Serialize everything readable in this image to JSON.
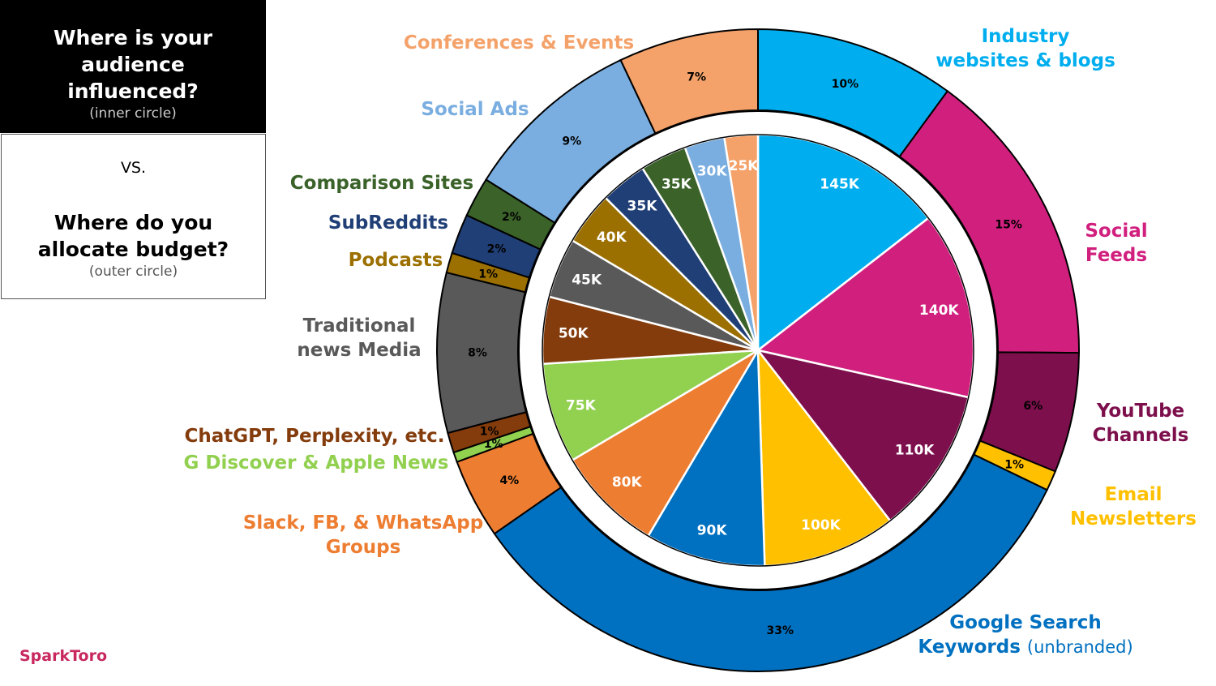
{
  "header": {
    "question_inner": "Where is your audience influenced?",
    "inner_note": "(inner circle)",
    "vs": "VS.",
    "question_outer": "Where do you allocate budget?",
    "outer_note": "(outer circle)"
  },
  "brand": "SparkToro",
  "chart_data": {
    "type": "pie",
    "variant": "nested donut",
    "inner": {
      "unit": "K",
      "slices": [
        {
          "category": "Industry websites & blogs",
          "value": 145,
          "label": "145K",
          "color": "#00aeef"
        },
        {
          "category": "Social Feeds",
          "value": 140,
          "label": "140K",
          "color": "#d11f7e"
        },
        {
          "category": "YouTube Channels",
          "value": 110,
          "label": "110K",
          "color": "#7d0f4d"
        },
        {
          "category": "Email Newsletters",
          "value": 100,
          "label": "100K",
          "color": "#ffc000"
        },
        {
          "category": "Google Search Keywords (unbranded)",
          "value": 90,
          "label": "90K",
          "color": "#0070c0"
        },
        {
          "category": "Slack, FB, & WhatsApp Groups",
          "value": 80,
          "label": "80K",
          "color": "#ed7d31"
        },
        {
          "category": "G Discover & Apple News",
          "value": 75,
          "label": "75K",
          "color": "#92d050"
        },
        {
          "category": "ChatGPT, Perplexity, etc.",
          "value": 50,
          "label": "50K",
          "color": "#843c0c"
        },
        {
          "category": "Traditional news Media",
          "value": 45,
          "label": "45K",
          "color": "#595959"
        },
        {
          "category": "Podcasts",
          "value": 40,
          "label": "40K",
          "color": "#9c7000"
        },
        {
          "category": "SubReddits",
          "value": 35,
          "label": "35K",
          "color": "#203f76"
        },
        {
          "category": "Comparison Sites",
          "value": 35,
          "label": "35K",
          "color": "#3a6229"
        },
        {
          "category": "Social Ads",
          "value": 30,
          "label": "30K",
          "color": "#7aaee0"
        },
        {
          "category": "Conferences & Events",
          "value": 25,
          "label": "25K",
          "color": "#f4a26a"
        }
      ]
    },
    "outer": {
      "unit": "%",
      "slices": [
        {
          "category": "Industry websites & blogs",
          "value": 10,
          "label": "10%",
          "color": "#00aeef"
        },
        {
          "category": "Social Feeds",
          "value": 15,
          "label": "15%",
          "color": "#d11f7e"
        },
        {
          "category": "YouTube Channels",
          "value": 6,
          "label": "6%",
          "color": "#7d0f4d"
        },
        {
          "category": "Email Newsletters",
          "value": 1,
          "label": "1%",
          "color": "#ffc000"
        },
        {
          "category": "Google Search Keywords (unbranded)",
          "value": 33,
          "label": "33%",
          "color": "#0070c0"
        },
        {
          "category": "Slack, FB, & WhatsApp Groups",
          "value": 4,
          "label": "4%",
          "color": "#ed7d31"
        },
        {
          "category": "G Discover & Apple News",
          "value": 0.5,
          "label": "1%",
          "color": "#92d050"
        },
        {
          "category": "ChatGPT, Perplexity, etc.",
          "value": 1,
          "label": "1%",
          "color": "#843c0c"
        },
        {
          "category": "Traditional news Media",
          "value": 8,
          "label": "8%",
          "color": "#595959"
        },
        {
          "category": "Podcasts",
          "value": 1,
          "label": "1%",
          "color": "#9c7000"
        },
        {
          "category": "SubReddits",
          "value": 2,
          "label": "2%",
          "color": "#203f76"
        },
        {
          "category": "Comparison Sites",
          "value": 2,
          "label": "2%",
          "color": "#3a6229"
        },
        {
          "category": "Social Ads",
          "value": 9,
          "label": "9%",
          "color": "#7aaee0"
        },
        {
          "category": "Conferences & Events",
          "value": 7,
          "label": "7%",
          "color": "#f4a26a"
        }
      ]
    },
    "category_labels": [
      {
        "lines": [
          "Industry",
          "websites & blogs"
        ],
        "color": "#00aeef"
      },
      {
        "lines": [
          "Social",
          "Feeds"
        ],
        "color": "#d11f7e"
      },
      {
        "lines": [
          "YouTube",
          "Channels"
        ],
        "color": "#7d0f4d"
      },
      {
        "lines": [
          "Email",
          "Newsletters"
        ],
        "color": "#ffc000"
      },
      {
        "lines": [
          "Google Search",
          "Keywords"
        ],
        "suffix": "(unbranded)",
        "color": "#0070c0"
      },
      {
        "lines": [
          "Slack, FB, & WhatsApp",
          "Groups"
        ],
        "color": "#ed7d31"
      },
      {
        "lines": [
          "G Discover & Apple News"
        ],
        "color": "#92d050"
      },
      {
        "lines": [
          "ChatGPT, Perplexity, etc."
        ],
        "color": "#843c0c"
      },
      {
        "lines": [
          "Traditional",
          "news Media"
        ],
        "color": "#595959"
      },
      {
        "lines": [
          "Podcasts"
        ],
        "color": "#9c7000"
      },
      {
        "lines": [
          "SubReddits"
        ],
        "color": "#203f76"
      },
      {
        "lines": [
          "Comparison Sites"
        ],
        "color": "#3a6229"
      },
      {
        "lines": [
          "Social Ads"
        ],
        "color": "#7aaee0"
      },
      {
        "lines": [
          "Conferences & Events"
        ],
        "color": "#f4a26a"
      }
    ]
  }
}
